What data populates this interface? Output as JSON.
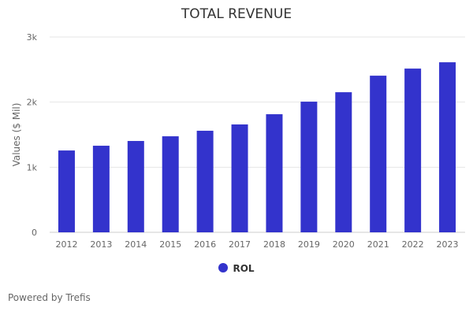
{
  "chart_data": {
    "type": "bar",
    "title": "TOTAL REVENUE",
    "xlabel": "",
    "ylabel": "Values ($ Mil)",
    "ylim": [
      0,
      3000
    ],
    "yticks": [
      {
        "value": 0,
        "label": "0"
      },
      {
        "value": 1000,
        "label": "1k"
      },
      {
        "value": 2000,
        "label": "2k"
      },
      {
        "value": 3000,
        "label": "3k"
      }
    ],
    "grid": true,
    "legend_position": "bottom",
    "categories": [
      "2012",
      "2013",
      "2014",
      "2015",
      "2016",
      "2017",
      "2018",
      "2019",
      "2020",
      "2021",
      "2022",
      "2023"
    ],
    "series": [
      {
        "name": "ROL",
        "color": "#3333cc",
        "values": [
          1257,
          1330,
          1403,
          1475,
          1560,
          1657,
          1814,
          2007,
          2152,
          2406,
          2515,
          2612
        ]
      }
    ]
  },
  "footer": {
    "credit": "Powered by Trefis"
  }
}
